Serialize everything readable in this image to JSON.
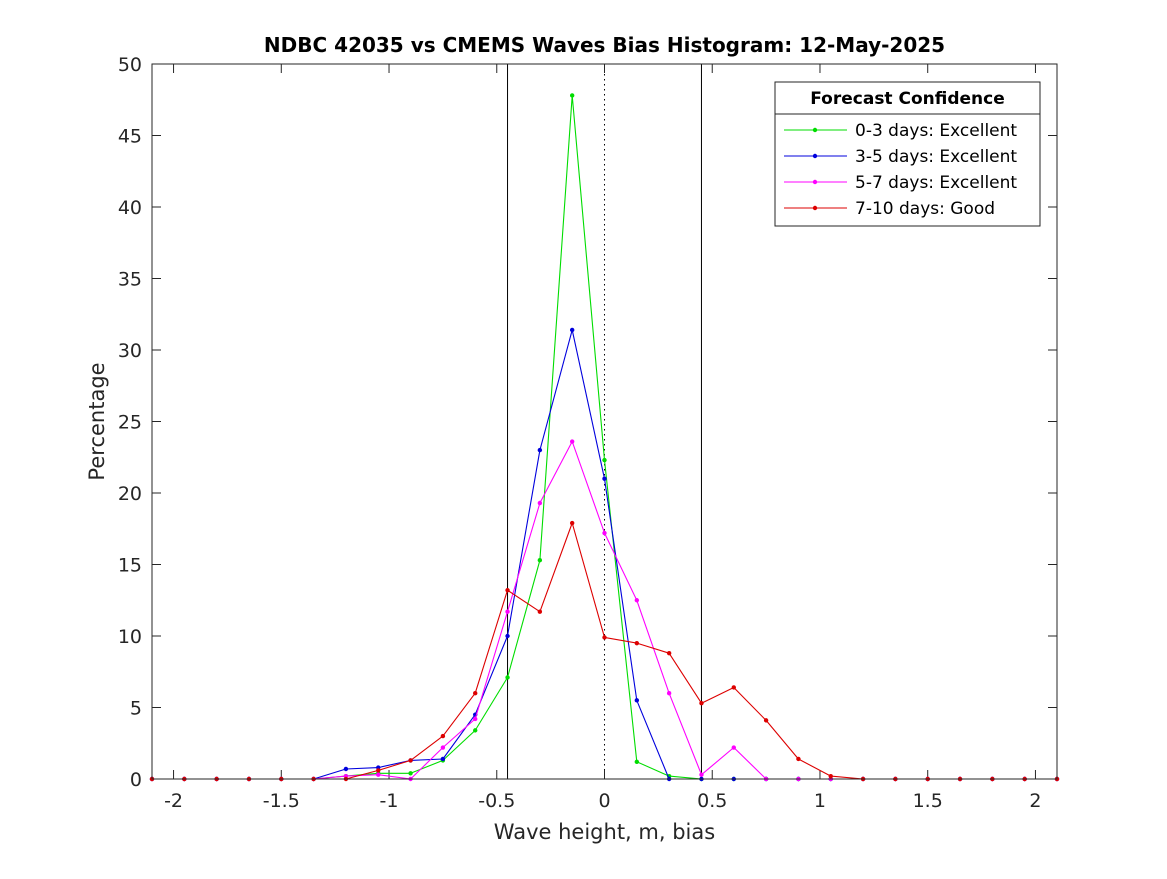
{
  "chart_data": {
    "type": "line",
    "title": "NDBC 42035 vs CMEMS Waves Bias Histogram: 12-May-2025",
    "xlabel": "Wave height, m, bias",
    "ylabel": "Percentage",
    "xlim": [
      -2.1,
      2.1
    ],
    "ylim": [
      0,
      50
    ],
    "x_ticks": [
      -2,
      -1.5,
      -1,
      -0.5,
      0,
      0.5,
      1,
      1.5,
      2
    ],
    "x_tick_labels": [
      "-2",
      "-1.5",
      "-1",
      "-0.5",
      "0",
      "0.5",
      "1",
      "1.5",
      "2"
    ],
    "y_ticks": [
      0,
      5,
      10,
      15,
      20,
      25,
      30,
      35,
      40,
      45,
      50
    ],
    "y_tick_labels": [
      "0",
      "5",
      "10",
      "15",
      "20",
      "25",
      "30",
      "35",
      "40",
      "45",
      "50"
    ],
    "grid": false,
    "legend_title": "Forecast Confidence",
    "legend_location": "top-right",
    "reference_lines": [
      {
        "x": -0.45,
        "style": "solid",
        "color": "#000000"
      },
      {
        "x": 0,
        "style": "dotted",
        "color": "#000000"
      },
      {
        "x": 0.45,
        "style": "solid",
        "color": "#000000"
      }
    ],
    "x": [
      -2.1,
      -1.95,
      -1.8,
      -1.65,
      -1.5,
      -1.35,
      -1.2,
      -1.05,
      -0.9,
      -0.75,
      -0.6,
      -0.45,
      -0.3,
      -0.15,
      0,
      0.15,
      0.3,
      0.45,
      0.6,
      0.75,
      0.9,
      1.05,
      1.2,
      1.35,
      1.5,
      1.65,
      1.8,
      1.95,
      2.1
    ],
    "series": [
      {
        "name": "0-3 days: Excellent",
        "color": "#00dd00",
        "values": [
          0,
          0,
          0,
          0,
          0,
          0,
          0.2,
          0.4,
          0.4,
          1.3,
          3.4,
          7.1,
          15.3,
          47.8,
          22.3,
          1.2,
          0.2,
          0,
          0,
          0,
          0,
          0,
          0,
          0,
          0,
          0,
          0,
          0,
          0
        ]
      },
      {
        "name": "3-5 days: Excellent",
        "color": "#0000dd",
        "values": [
          0,
          0,
          0,
          0,
          0,
          0,
          0.7,
          0.8,
          1.3,
          1.4,
          4.5,
          10.0,
          23.0,
          31.4,
          21.0,
          5.5,
          0,
          0,
          0,
          0,
          0,
          0,
          0,
          0,
          0,
          0,
          0,
          0,
          0
        ]
      },
      {
        "name": "5-7 days: Excellent",
        "color": "#ff00ff",
        "values": [
          0,
          0,
          0,
          0,
          0,
          0,
          0.2,
          0.3,
          0,
          2.2,
          4.2,
          11.7,
          19.3,
          23.6,
          17.2,
          12.5,
          6.0,
          0.3,
          2.2,
          0,
          0,
          0,
          0,
          0,
          0,
          0,
          0,
          0,
          0
        ]
      },
      {
        "name": "7-10 days: Good",
        "color": "#dd0000",
        "values": [
          0,
          0,
          0,
          0,
          0,
          0,
          0,
          0.6,
          1.3,
          3.0,
          6.0,
          13.2,
          11.7,
          17.9,
          9.9,
          9.5,
          8.8,
          5.3,
          6.4,
          4.1,
          1.4,
          0.2,
          0,
          0,
          0,
          0,
          0,
          0,
          0
        ]
      }
    ]
  }
}
